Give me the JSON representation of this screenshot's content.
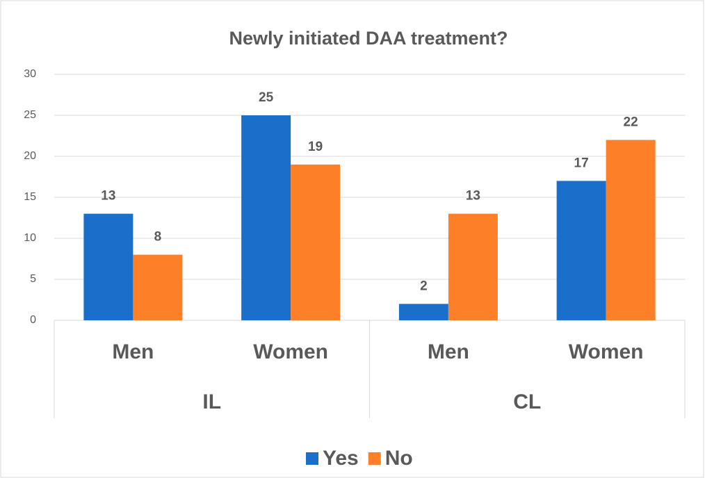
{
  "chart_data": {
    "type": "bar",
    "title": "Newly initiated DAA treatment?",
    "categories": [
      "Men",
      "Women",
      "Men",
      "Women"
    ],
    "groups": [
      "IL",
      "CL"
    ],
    "series": [
      {
        "name": "Yes",
        "color": "#1a6fca",
        "values": [
          13,
          25,
          2,
          17
        ]
      },
      {
        "name": "No",
        "color": "#fd7f28",
        "values": [
          8,
          19,
          13,
          22
        ]
      }
    ],
    "ylim": [
      0,
      30
    ],
    "yticks": [
      0,
      5,
      10,
      15,
      20,
      25,
      30
    ],
    "grid": true,
    "legend": "bottom"
  }
}
